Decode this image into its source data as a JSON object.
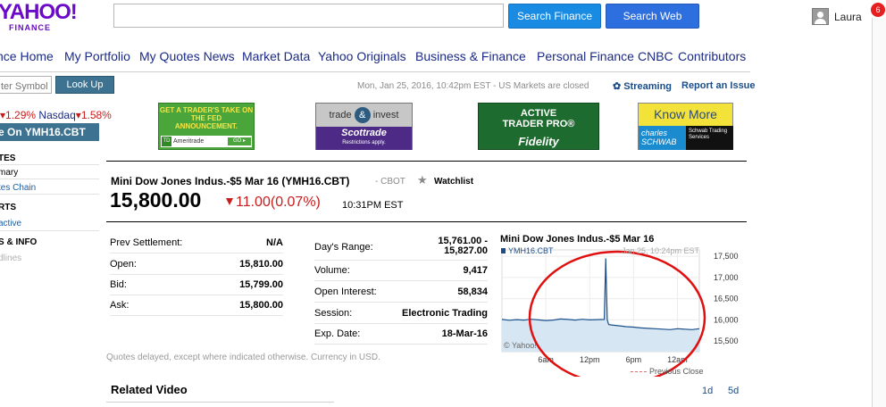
{
  "header": {
    "logo_big": "YAHOO!",
    "logo_small": "FINANCE",
    "search_placeholder": "",
    "search_finance_label": "Search Finance",
    "search_web_label": "Search Web",
    "user_name": "Laura",
    "notification_count": "6"
  },
  "nav": {
    "items": [
      "nce Home",
      "My Portfolio",
      "My Quotes News",
      "Market Data",
      "Yahoo Originals",
      "Business & Finance",
      "Personal Finance",
      "CNBC",
      "Contributors"
    ]
  },
  "lookup": {
    "placeholder": "ter Symbol",
    "button_label": "Look Up"
  },
  "status": {
    "market_time": "Mon, Jan 25, 2016, 10:42pm EST - US Markets are closed",
    "streaming_label": "Streaming",
    "report_label": "Report an Issue"
  },
  "ticker": {
    "first_change": "1.29%",
    "second_name": "Nasdaq",
    "second_change": "1.58%"
  },
  "sidebar": {
    "header": "e On YMH16.CBT",
    "items": [
      {
        "label": "TES",
        "kind": "section"
      },
      {
        "label": "mary",
        "kind": "current"
      },
      {
        "label": "tes Chain",
        "kind": "link"
      },
      {
        "label": "RTS",
        "kind": "section"
      },
      {
        "label": "active",
        "kind": "link"
      },
      {
        "label": "S & INFO",
        "kind": "section"
      },
      {
        "label": "dlines",
        "kind": "disabled"
      }
    ]
  },
  "ads": {
    "td": {
      "text": "GET A TRADER'S TAKE ON THE FED ANNOUNCEMENT.",
      "brand": "Ameritrade",
      "go": "GO ▸",
      "logo": "TD"
    },
    "scottrade": {
      "top": "trade",
      "amp": "&",
      "top2": "invest",
      "brand": "Scottrade",
      "sub": "Restrictions apply."
    },
    "fidelity": {
      "line1": "ACTIVE",
      "line2": "TRADER PRO®",
      "brand": "Fidelity"
    },
    "schwab": {
      "top": "Know More",
      "brand": "charles SCHWAB",
      "sub": "Schwab Trading Services"
    }
  },
  "quote": {
    "name": "Mini Dow Jones Indus.-$5 Mar 16 (YMH16.CBT)",
    "exchange": "- CBOT",
    "watchlist_label": "Watchlist",
    "price": "15,800.00",
    "change": "11.00",
    "change_pct": "(0.07%)",
    "time": "10:31PM EST"
  },
  "stats_left": [
    {
      "label": "Prev Settlement:",
      "value": "N/A"
    },
    {
      "label": "Open:",
      "value": "15,810.00"
    },
    {
      "label": "Bid:",
      "value": "15,799.00"
    },
    {
      "label": "Ask:",
      "value": "15,800.00"
    }
  ],
  "stats_right": [
    {
      "label": "Day's Range:",
      "value_line1": "15,761.00 -",
      "value_line2": "15,827.00"
    },
    {
      "label": "Volume:",
      "value": "9,417"
    },
    {
      "label": "Open Interest:",
      "value": "58,834"
    },
    {
      "label": "Session:",
      "value": "Electronic Trading"
    },
    {
      "label": "Exp. Date:",
      "value": "18-Mar-16"
    }
  ],
  "disclaimer": "Quotes delayed, except where indicated otherwise. Currency in USD.",
  "chart": {
    "title": "Mini Dow Jones Indus.-$5 Mar 16",
    "legend": "YMH16.CBT",
    "date_label": "Jan 25, 10:24pm EST",
    "watermark": "© Yahoo!",
    "prev_close_label": "Previous Close",
    "range_buttons": [
      "1d",
      "5d"
    ],
    "series_color": "#1b4e8a",
    "fill_color": "#d6e7f3",
    "highlight_color": "#e01010"
  },
  "chart_data": {
    "type": "area",
    "title": "Mini Dow Jones Indus.-$5 Mar 16",
    "xlabel": "",
    "ylabel": "",
    "ylim": [
      15250,
      17650
    ],
    "y_ticks": [
      15500,
      16000,
      16500,
      17000,
      17500
    ],
    "y_tick_labels": [
      "15,500",
      "16,000",
      "16,500",
      "17,000",
      "17,500"
    ],
    "x_ticks": [
      6,
      12,
      18,
      24
    ],
    "x_tick_labels": [
      "6am",
      "12pm",
      "6pm",
      "12am"
    ],
    "xlim": [
      0,
      27
    ],
    "series": [
      {
        "name": "YMH16.CBT",
        "x": [
          0,
          1,
          2,
          3,
          4,
          5,
          6,
          7,
          8,
          9,
          10,
          11,
          12,
          13,
          14,
          14.2,
          14.4,
          14.6,
          15,
          16,
          17,
          18,
          19,
          20,
          21,
          22,
          23,
          24,
          25,
          26,
          27
        ],
        "values": [
          16010,
          15990,
          16005,
          15995,
          16015,
          16000,
          15985,
          15995,
          16020,
          16010,
          15995,
          16015,
          16000,
          16005,
          16010,
          17450,
          16000,
          15890,
          15880,
          15860,
          15840,
          15830,
          15810,
          15800,
          15790,
          15780,
          15770,
          15790,
          15780,
          15770,
          15790
        ]
      }
    ],
    "grid": true,
    "legend_position": "top-left"
  },
  "related": {
    "title": "Related Video"
  }
}
